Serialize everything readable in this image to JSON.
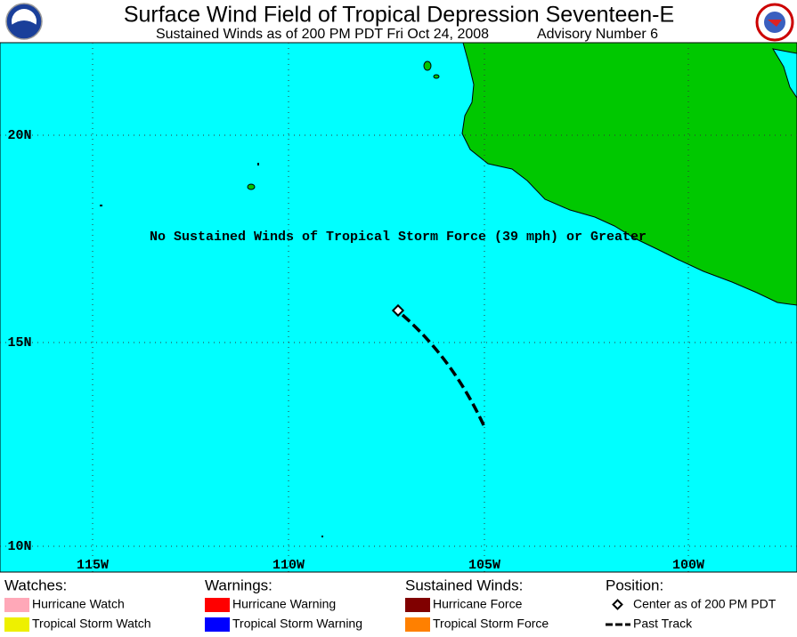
{
  "header": {
    "title": "Surface Wind Field of Tropical Depression Seventeen-E",
    "subtitle": "Sustained Winds as of 200 PM PDT Fri Oct 24, 2008",
    "advisory": "Advisory Number 6"
  },
  "map": {
    "lat_labels": [
      "20N",
      "15N",
      "10N"
    ],
    "lon_labels": [
      "115W",
      "110W",
      "105W",
      "100W"
    ],
    "annotation": "No Sustained Winds of Tropical Storm Force (39 mph) or Greater"
  },
  "legend": [
    {
      "heading": "Watches:",
      "items": [
        {
          "name": "Hurricane Watch",
          "color": "#ffa8b8"
        },
        {
          "name": "Tropical Storm Watch",
          "color": "#eef000"
        }
      ]
    },
    {
      "heading": "Warnings:",
      "items": [
        {
          "name": "Hurricane Warning",
          "color": "#ff0000"
        },
        {
          "name": "Tropical Storm Warning",
          "color": "#0000ff"
        }
      ]
    },
    {
      "heading": "Sustained Winds:",
      "items": [
        {
          "name": "Hurricane Force",
          "color": "#800000"
        },
        {
          "name": "Tropical Storm Force",
          "color": "#ff8000"
        }
      ]
    },
    {
      "heading": "Position:",
      "items": [
        {
          "name": "Center as of 200 PM PDT"
        },
        {
          "name": "Past Track"
        }
      ]
    }
  ]
}
